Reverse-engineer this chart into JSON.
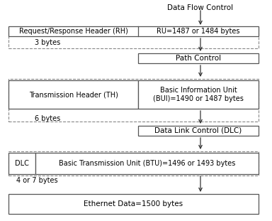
{
  "title": "Data Flow Control",
  "bg_color": "#ffffff",
  "rh_left_text": "Request/Response Header (RH)",
  "rh_right_text": "RU=1487 or 1484 bytes",
  "rh_bytes": "3 bytes",
  "path_control_text": "Path Control",
  "th_left_text": "Transmission Header (TH)",
  "th_right_text": "Basic Information Unit\n(BUI)=1490 or 1487 bytes",
  "th_bytes": "6 bytes",
  "dlc_box_text": "Data Link Control (DLC)",
  "btu_left_text": "DLC",
  "btu_right_text": "Basic Transmission Unit (BTU)=1496 or 1493 bytes",
  "btu_bytes": "4 or 7 bytes",
  "eth_text": "Ethernet Data=1500 bytes",
  "font_size": 7.5,
  "small_font": 7.0,
  "solid_ec": "#555555",
  "dashed_ec": "#888888",
  "solid_lw": 0.9,
  "dashed_lw": 0.8
}
